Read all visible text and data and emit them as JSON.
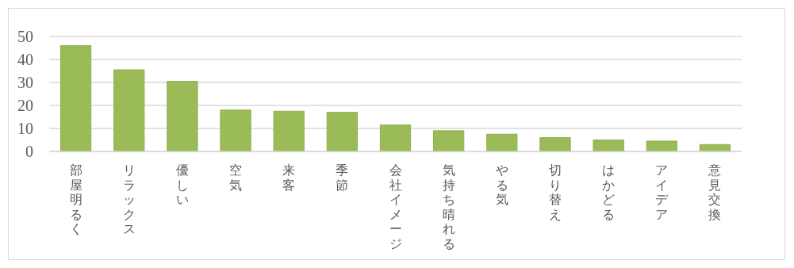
{
  "chart_data": {
    "type": "bar",
    "categories": [
      "部屋明るく",
      "リラックス",
      "優しい",
      "空気",
      "来客",
      "季節",
      "会社イメージ",
      "気持ち晴れる",
      "やる気",
      "切り替え",
      "はかどる",
      "アイデア",
      "意見交換"
    ],
    "values": [
      46,
      35.5,
      30.5,
      18,
      17.5,
      17,
      11.5,
      9,
      7.5,
      6,
      5,
      4.5,
      3
    ],
    "color": "#9bbb59",
    "ylim": [
      0,
      50
    ],
    "yticks": [
      0,
      10,
      20,
      30,
      40,
      50
    ],
    "grid": "y"
  }
}
